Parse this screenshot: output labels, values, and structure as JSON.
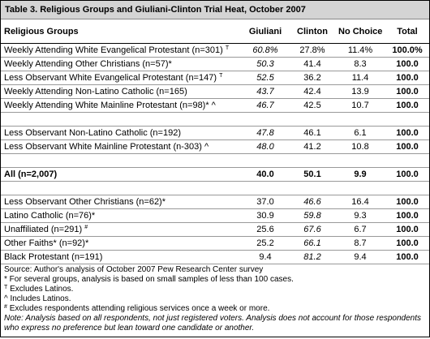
{
  "title": "Table 3. Religious Groups and Giuliani-Clinton Trial Heat, October 2007",
  "table": {
    "header": [
      "Religious Groups",
      "Giuliani",
      "Clinton",
      "No Choice",
      "Total"
    ],
    "rows": [
      {
        "group": "Weekly Attending White Evangelical Protestant (n=301)",
        "mark": "T",
        "values": [
          "60.8%",
          "27.8%",
          "11.4%",
          "100.0%"
        ]
      },
      {
        "group": "Weekly Attending Other Christians (n=57)*",
        "values": [
          "50.3",
          "41.4",
          "8.3",
          "100.0"
        ]
      },
      {
        "group": "Less Observant White Evangelical Protestant (n=147)",
        "mark": "T",
        "values": [
          "52.5",
          "36.2",
          "11.4",
          "100.0"
        ]
      },
      {
        "group": "Weekly Attending Non-Latino Catholic (n=165)",
        "values": [
          "43.7",
          "42.4",
          "13.9",
          "100.0"
        ]
      },
      {
        "group": "Weekly Attending White Mainline Protestant (n=98)* ^",
        "values": [
          "46.7",
          "42.5",
          "10.7",
          "100.0"
        ]
      },
      {
        "group": "Less Observant Non-Latino Catholic (n=192)",
        "values": [
          "47.8",
          "46.1",
          "6.1",
          "100.0"
        ]
      },
      {
        "group": "Less Observant White Mainline Protestant (n-303) ^",
        "values": [
          "48.0",
          "41.2",
          "10.8",
          "100.0"
        ]
      },
      {
        "group": "All (n=2,007)",
        "values": [
          "40.0",
          "50.1",
          "9.9",
          "100.0"
        ]
      },
      {
        "group": "Less Observant Other Christians (n=62)*",
        "values": [
          "37.0",
          "46.6",
          "16.4",
          "100.0"
        ]
      },
      {
        "group": "Latino Catholic (n=76)*",
        "values": [
          "30.9",
          "59.8",
          "9.3",
          "100.0"
        ]
      },
      {
        "group": "Unaffiliated (n=291)",
        "mark": "#",
        "values": [
          "25.6",
          "67.6",
          "6.7",
          "100.0"
        ]
      },
      {
        "group": "Other Faiths* (n=92)*",
        "values": [
          "25.2",
          "66.1",
          "8.7",
          "100.0"
        ]
      },
      {
        "group": "Black Protestant (n=191)",
        "values": [
          "9.4",
          "81.2",
          "9.4",
          "100.0"
        ]
      }
    ]
  },
  "notes": {
    "source": "Source: Author's analysis of October 2007 Pew Research Center survey",
    "small_samples": "* For several groups, analysis is based on small samples of less than 100 cases.",
    "excludes_latinos": {
      "mark": "T",
      "text": "Excludes Latinos."
    },
    "includes_latinos": "^ Includes Latinos.",
    "excludes_attending": {
      "mark": "#",
      "text": "Excludes respondents attending religious services once a week or more."
    },
    "note": "Note: Analysis based on all respondents, not just registered voters. Analysis does not account for those respondents who express no preference but lean toward one candidate or another."
  }
}
